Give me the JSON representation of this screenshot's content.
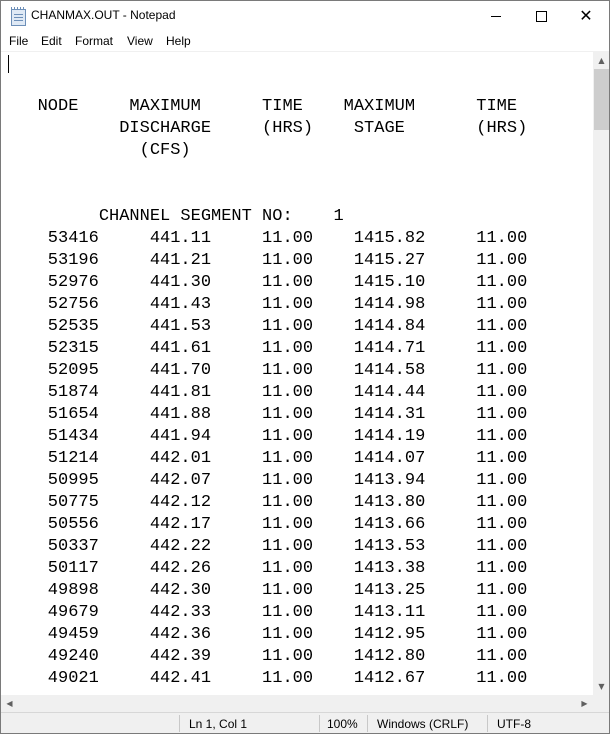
{
  "window": {
    "title": "CHANMAX.OUT - Notepad",
    "minimize_glyph": "minimize-icon",
    "maximize_glyph": "maximize-icon",
    "close_glyph": "✕"
  },
  "menu": [
    "File",
    "Edit",
    "Format",
    "View",
    "Help"
  ],
  "document": {
    "lines": [
      "",
      "",
      "   NODE     MAXIMUM      TIME    MAXIMUM      TIME",
      "           DISCHARGE     (HRS)    STAGE       (HRS)",
      "             (CFS)",
      "",
      "",
      "         CHANNEL SEGMENT NO:    1",
      "    53416     441.11     11.00    1415.82     11.00",
      "    53196     441.21     11.00    1415.27     11.00",
      "    52976     441.30     11.00    1415.10     11.00",
      "    52756     441.43     11.00    1414.98     11.00",
      "    52535     441.53     11.00    1414.84     11.00",
      "    52315     441.61     11.00    1414.71     11.00",
      "    52095     441.70     11.00    1414.58     11.00",
      "    51874     441.81     11.00    1414.44     11.00",
      "    51654     441.88     11.00    1414.31     11.00",
      "    51434     441.94     11.00    1414.19     11.00",
      "    51214     442.01     11.00    1414.07     11.00",
      "    50995     442.07     11.00    1413.94     11.00",
      "    50775     442.12     11.00    1413.80     11.00",
      "    50556     442.17     11.00    1413.66     11.00",
      "    50337     442.22     11.00    1413.53     11.00",
      "    50117     442.26     11.00    1413.38     11.00",
      "    49898     442.30     11.00    1413.25     11.00",
      "    49679     442.33     11.00    1413.11     11.00",
      "    49459     442.36     11.00    1412.95     11.00",
      "    49240     442.39     11.00    1412.80     11.00",
      "    49021     442.41     11.00    1412.67     11.00"
    ]
  },
  "status": {
    "position": "Ln 1, Col 1",
    "zoom": "100%",
    "line_ending": "Windows (CRLF)",
    "encoding": "UTF-8"
  },
  "icons": {
    "app": "notepad-icon",
    "scroll_up": "scroll-up-arrow-icon",
    "scroll_down": "scroll-down-arrow-icon",
    "scroll_left": "scroll-left-arrow-icon",
    "scroll_right": "scroll-right-arrow-icon"
  },
  "colors": {
    "chrome": "#f0f0f0",
    "scroll_thumb": "#cdcdcd",
    "text": "#000000"
  }
}
